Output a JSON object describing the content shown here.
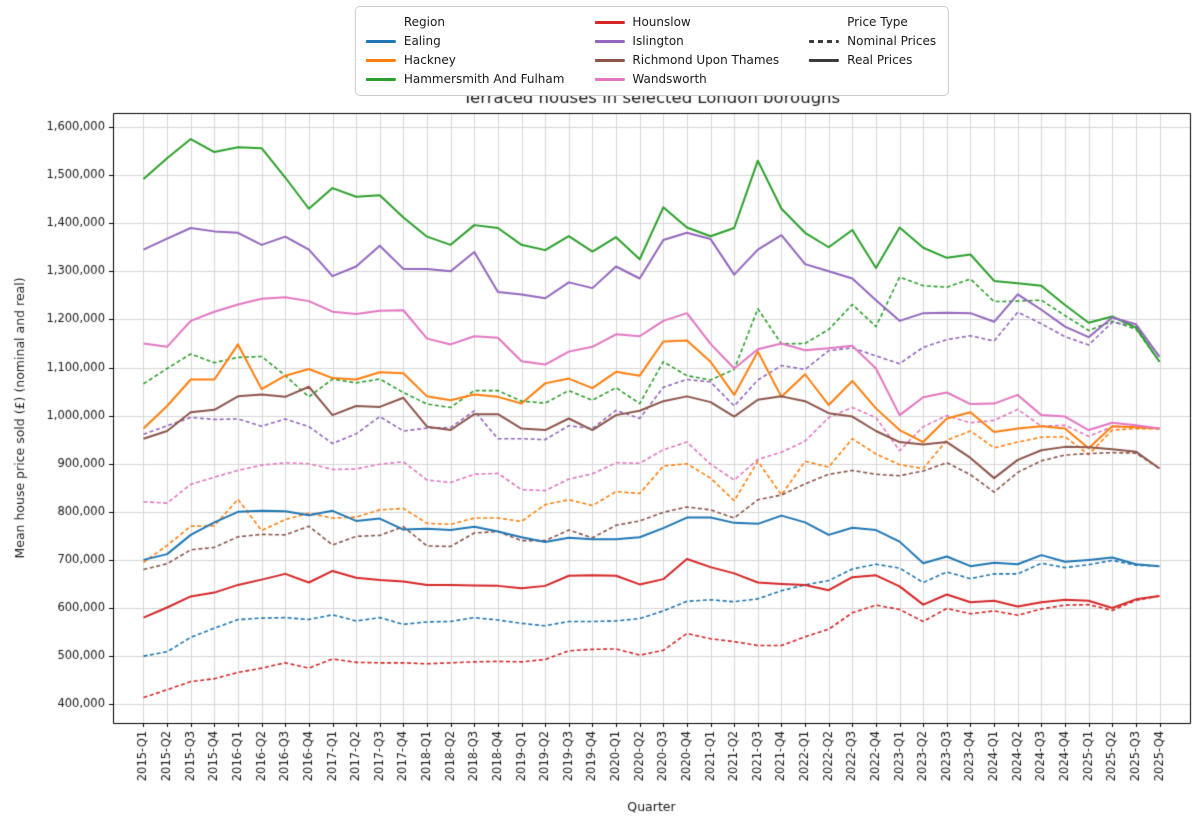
{
  "chart_data": {
    "type": "line",
    "title": "Terraced houses in selected London boroughs",
    "xlabel": "Quarter",
    "ylabel": "Mean house price sold (£) (nominal and real)",
    "ylim": [
      400000,
      1600000
    ],
    "ytick_step": 100000,
    "grid": true,
    "legend_position": "top-center",
    "x": [
      "2015-Q1",
      "2015-Q2",
      "2015-Q3",
      "2015-Q4",
      "2016-Q1",
      "2016-Q2",
      "2016-Q3",
      "2016-Q4",
      "2017-Q1",
      "2017-Q2",
      "2017-Q3",
      "2017-Q4",
      "2018-Q1",
      "2018-Q2",
      "2018-Q3",
      "2018-Q4",
      "2019-Q1",
      "2019-Q2",
      "2019-Q3",
      "2019-Q4",
      "2020-Q1",
      "2020-Q2",
      "2020-Q3",
      "2020-Q4",
      "2021-Q1",
      "2021-Q2",
      "2021-Q3",
      "2021-Q4",
      "2022-Q1",
      "2022-Q2",
      "2022-Q3",
      "2022-Q4",
      "2023-Q1",
      "2023-Q2",
      "2023-Q3",
      "2023-Q4",
      "2024-Q1",
      "2024-Q2",
      "2024-Q3",
      "2024-Q4",
      "2025-Q1",
      "2025-Q2",
      "2025-Q3",
      "2025-Q4"
    ],
    "series": [
      {
        "name": "Ealing",
        "color": "#1f77b4",
        "real": [
          700000,
          712000,
          752000,
          778000,
          800000,
          802000,
          801000,
          793000,
          802000,
          781000,
          786000,
          763000,
          765000,
          762000,
          769000,
          759000,
          747000,
          737000,
          746000,
          743000,
          743000,
          747000,
          766000,
          788000,
          788000,
          777000,
          775000,
          792000,
          778000,
          752000,
          767000,
          762000,
          738000,
          693000,
          707000,
          687000,
          694000,
          691000,
          710000,
          696000,
          700000,
          705000,
          691000,
          687000
        ],
        "nominal": [
          500000,
          509000,
          539000,
          558000,
          576000,
          579000,
          580000,
          576000,
          586000,
          573000,
          580000,
          566000,
          571000,
          572000,
          580000,
          575000,
          568000,
          563000,
          572000,
          572000,
          573000,
          578000,
          594000,
          614000,
          617000,
          613000,
          619000,
          636000,
          648000,
          657000,
          681000,
          691000,
          683000,
          653000,
          675000,
          661000,
          671000,
          671000,
          693000,
          684000,
          690000,
          699000,
          689000,
          687000
        ]
      },
      {
        "name": "Hackney",
        "color": "#ff7f0e",
        "real": [
          973000,
          1020000,
          1075000,
          1075000,
          1148000,
          1055000,
          1083000,
          1097000,
          1078000,
          1075000,
          1090000,
          1088000,
          1040000,
          1032000,
          1044000,
          1039000,
          1025000,
          1067000,
          1077000,
          1057000,
          1091000,
          1083000,
          1154000,
          1156000,
          1112000,
          1043000,
          1133000,
          1039000,
          1086000,
          1022000,
          1072000,
          1015000,
          970000,
          945000,
          994000,
          1007000,
          966000,
          973000,
          978000,
          973000,
          932000,
          978000,
          976000,
          973000
        ],
        "nominal": [
          695000,
          730000,
          770000,
          771000,
          826000,
          761000,
          784000,
          797000,
          787000,
          789000,
          804000,
          807000,
          776000,
          774000,
          787000,
          787000,
          780000,
          815000,
          825000,
          813000,
          842000,
          838000,
          895000,
          900000,
          870000,
          823000,
          905000,
          835000,
          905000,
          893000,
          952000,
          920000,
          898000,
          890000,
          949000,
          968000,
          933000,
          945000,
          955000,
          956000,
          919000,
          970000,
          973000,
          973000
        ]
      },
      {
        "name": "Hammersmith And Fulham",
        "color": "#2ca02c",
        "real": [
          1492000,
          1535000,
          1575000,
          1548000,
          1558000,
          1556000,
          1495000,
          1430000,
          1473000,
          1455000,
          1458000,
          1412000,
          1372000,
          1355000,
          1396000,
          1390000,
          1355000,
          1344000,
          1373000,
          1341000,
          1371000,
          1325000,
          1433000,
          1391000,
          1373000,
          1390000,
          1530000,
          1430000,
          1380000,
          1350000,
          1386000,
          1307000,
          1391000,
          1349000,
          1328000,
          1335000,
          1280000,
          1275000,
          1270000,
          1230000,
          1193000,
          1206000,
          1183000,
          1112000
        ],
        "nominal": [
          1066000,
          1098000,
          1128000,
          1110000,
          1121000,
          1123000,
          1083000,
          1039000,
          1076000,
          1068000,
          1076000,
          1048000,
          1024000,
          1017000,
          1052000,
          1052000,
          1030000,
          1026000,
          1052000,
          1032000,
          1058000,
          1025000,
          1112000,
          1083000,
          1074000,
          1096000,
          1222000,
          1149000,
          1150000,
          1179000,
          1231000,
          1185000,
          1288000,
          1270000,
          1267000,
          1284000,
          1237000,
          1238000,
          1240000,
          1208000,
          1177000,
          1196000,
          1180000,
          1112000
        ]
      },
      {
        "name": "Hounslow",
        "color": "#d62728",
        "real": [
          580000,
          601000,
          624000,
          632000,
          648000,
          659000,
          671000,
          653000,
          677000,
          663000,
          658000,
          655000,
          648000,
          648000,
          647000,
          646000,
          641000,
          646000,
          667000,
          668000,
          667000,
          649000,
          660000,
          702000,
          685000,
          672000,
          653000,
          650000,
          648000,
          637000,
          664000,
          668000,
          645000,
          607000,
          628000,
          612000,
          615000,
          603000,
          612000,
          617000,
          615000,
          600000,
          618000,
          625000
        ],
        "nominal": [
          414000,
          430000,
          447000,
          453000,
          466000,
          475000,
          486000,
          475000,
          494000,
          487000,
          486000,
          486000,
          484000,
          486000,
          488000,
          489000,
          488000,
          493000,
          511000,
          514000,
          515000,
          502000,
          512000,
          547000,
          536000,
          530000,
          522000,
          522000,
          540000,
          556000,
          590000,
          606000,
          597000,
          572000,
          599000,
          588000,
          594000,
          585000,
          598000,
          606000,
          607000,
          595000,
          616000,
          625000
        ]
      },
      {
        "name": "Islington",
        "color": "#9467bd",
        "real": [
          1345000,
          1368000,
          1390000,
          1383000,
          1380000,
          1355000,
          1372000,
          1345000,
          1290000,
          1310000,
          1353000,
          1305000,
          1305000,
          1300000,
          1340000,
          1257000,
          1252000,
          1244000,
          1277000,
          1265000,
          1310000,
          1285000,
          1365000,
          1380000,
          1367000,
          1293000,
          1345000,
          1375000,
          1315000,
          1300000,
          1285000,
          1240000,
          1197000,
          1213000,
          1214000,
          1213000,
          1195000,
          1252000,
          1220000,
          1185000,
          1163000,
          1204000,
          1190000,
          1122000
        ],
        "nominal": [
          961000,
          979000,
          996000,
          992000,
          993000,
          978000,
          993000,
          977000,
          942000,
          962000,
          998000,
          968000,
          974000,
          975000,
          1010000,
          952000,
          952000,
          950000,
          979000,
          973000,
          1011000,
          994000,
          1059000,
          1075000,
          1070000,
          1020000,
          1074000,
          1104000,
          1096000,
          1135000,
          1141000,
          1124000,
          1108000,
          1142000,
          1158000,
          1166000,
          1155000,
          1215000,
          1191000,
          1164000,
          1147000,
          1194000,
          1186000,
          1122000
        ]
      },
      {
        "name": "Richmond Upon Thames",
        "color": "#8c564b",
        "real": [
          952000,
          968000,
          1007000,
          1012000,
          1040000,
          1044000,
          1039000,
          1060000,
          1001000,
          1020000,
          1018000,
          1037000,
          977000,
          970000,
          1003000,
          1003000,
          973000,
          970000,
          994000,
          970000,
          1001000,
          1010000,
          1030000,
          1040000,
          1028000,
          998000,
          1033000,
          1040000,
          1030000,
          1005000,
          998000,
          968000,
          945000,
          940000,
          945000,
          912000,
          870000,
          908000,
          928000,
          935000,
          934000,
          930000,
          925000,
          890000
        ],
        "nominal": [
          680000,
          692000,
          721000,
          726000,
          748000,
          753000,
          752000,
          770000,
          731000,
          749000,
          751000,
          769000,
          729000,
          728000,
          756000,
          759000,
          740000,
          740000,
          762000,
          746000,
          772000,
          781000,
          799000,
          810000,
          804000,
          787000,
          825000,
          835000,
          858000,
          878000,
          886000,
          878000,
          875000,
          885000,
          902000,
          877000,
          841000,
          882000,
          906000,
          918000,
          921000,
          923000,
          922000,
          890000
        ]
      },
      {
        "name": "Wandsworth",
        "color": "#e377c2",
        "real": [
          1150000,
          1143000,
          1197000,
          1216000,
          1231000,
          1243000,
          1246000,
          1238000,
          1216000,
          1211000,
          1218000,
          1219000,
          1160000,
          1148000,
          1165000,
          1162000,
          1113000,
          1106000,
          1133000,
          1143000,
          1169000,
          1165000,
          1197000,
          1213000,
          1149000,
          1098000,
          1138000,
          1150000,
          1136000,
          1140000,
          1145000,
          1098000,
          1001000,
          1038000,
          1048000,
          1024000,
          1025000,
          1043000,
          1001000,
          998000,
          970000,
          985000,
          980000,
          973000
        ],
        "nominal": [
          821000,
          818000,
          857000,
          872000,
          886000,
          897000,
          902000,
          900000,
          888000,
          889000,
          899000,
          904000,
          866000,
          861000,
          878000,
          880000,
          846000,
          844000,
          868000,
          879000,
          902000,
          901000,
          929000,
          945000,
          899000,
          866000,
          909000,
          924000,
          947000,
          996000,
          1017000,
          996000,
          927000,
          977000,
          1000000,
          985000,
          990000,
          1013000,
          978000,
          980000,
          957000,
          977000,
          977000,
          973000
        ]
      }
    ]
  },
  "legend": {
    "region_header": "Region",
    "price_type_header": "Price Type",
    "regions": [
      {
        "label": "Ealing",
        "color": "#1f77b4"
      },
      {
        "label": "Hackney",
        "color": "#ff7f0e"
      },
      {
        "label": "Hammersmith And Fulham",
        "color": "#2ca02c"
      },
      {
        "label": "Hounslow",
        "color": "#d62728"
      },
      {
        "label": "Islington",
        "color": "#9467bd"
      },
      {
        "label": "Richmond Upon Thames",
        "color": "#8c564b"
      },
      {
        "label": "Wandsworth",
        "color": "#e377c2"
      }
    ],
    "price_types": [
      {
        "label": "Nominal Prices",
        "style": "dashed"
      },
      {
        "label": "Real Prices",
        "style": "solid"
      }
    ],
    "line_color": "#3a3a3a"
  },
  "style": {
    "grid_color": "#d4d4d4",
    "spine_color": "#000000",
    "text_color": "#1a1a1a"
  }
}
